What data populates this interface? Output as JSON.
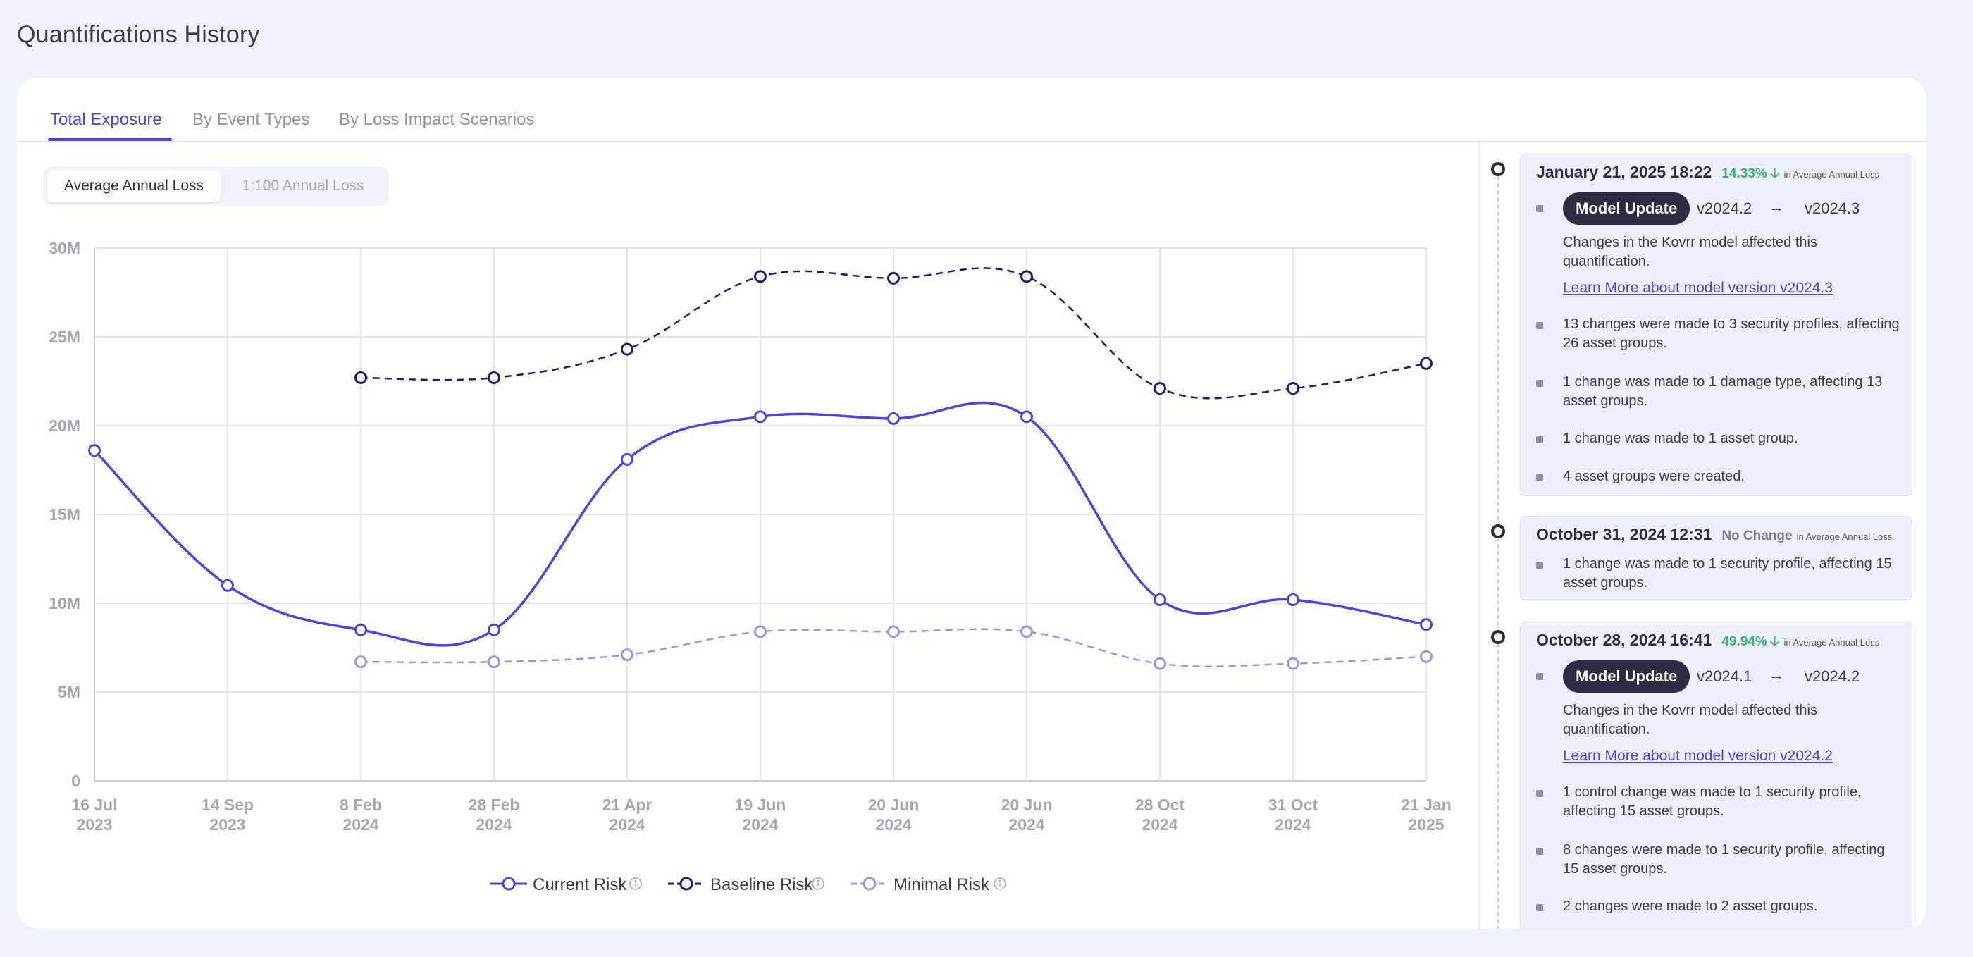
{
  "page": {
    "title": "Quantifications History"
  },
  "tabs": [
    {
      "label": "Total Exposure",
      "active": true
    },
    {
      "label": "By Event Types",
      "active": false
    },
    {
      "label": "By Loss Impact Scenarios",
      "active": false
    }
  ],
  "toggle": {
    "options": [
      "Average Annual Loss",
      "1:100 Annual Loss"
    ],
    "selected": 0
  },
  "colors": {
    "current": "#4b47d8",
    "baseline": "#1c1a7a",
    "minimal": "#8f9be8",
    "positive": "#3cb371",
    "badge": "#2b2d42"
  },
  "chart_data": {
    "type": "line",
    "categories": [
      [
        "16 Jul",
        "2023"
      ],
      [
        "14 Sep",
        "2023"
      ],
      [
        "8 Feb",
        "2024"
      ],
      [
        "28 Feb",
        "2024"
      ],
      [
        "21 Apr",
        "2024"
      ],
      [
        "19 Jun",
        "2024"
      ],
      [
        "20 Jun",
        "2024"
      ],
      [
        "20 Jun",
        "2024"
      ],
      [
        "28 Oct",
        "2024"
      ],
      [
        "31 Oct",
        "2024"
      ],
      [
        "21 Jan",
        "2025"
      ]
    ],
    "ylim": [
      0,
      30000000
    ],
    "yticks": [
      0,
      5000000,
      10000000,
      15000000,
      20000000,
      25000000,
      30000000
    ],
    "ytick_labels": [
      "0",
      "5M",
      "10M",
      "15M",
      "20M",
      "25M",
      "30M"
    ],
    "grid": true,
    "legend": "bottom-center",
    "series": [
      {
        "name": "Current Risk",
        "style": "solid",
        "values": [
          18.6,
          11.0,
          8.5,
          8.5,
          18.1,
          20.5,
          20.4,
          20.5,
          10.2,
          10.2,
          8.8
        ],
        "unit_multiplier": 1000000
      },
      {
        "name": "Baseline Risk",
        "style": "dashed",
        "values": [
          null,
          null,
          22.7,
          22.7,
          24.3,
          28.4,
          28.3,
          28.4,
          22.1,
          22.1,
          23.5
        ],
        "unit_multiplier": 1000000
      },
      {
        "name": "Minimal Risk",
        "style": "dashed",
        "values": [
          null,
          null,
          6.7,
          6.7,
          7.1,
          8.4,
          8.4,
          8.4,
          6.6,
          6.6,
          7.0
        ],
        "unit_multiplier": 1000000
      }
    ]
  },
  "timeline": {
    "in_label": "in Average Annual Loss",
    "entries": [
      {
        "date": "January 21, 2025 18:22",
        "change": "14.33%",
        "arrow": "🡣",
        "badge": "Model Update",
        "from_version": "v2024.2",
        "to_version": "v2024.3",
        "arrow_sym": "→",
        "model_text": "Changes in the Kovrr model affected this quantification.",
        "link": "Learn More about model version v2024.3",
        "items": [
          "13 changes were made to 3 security profiles, affecting 26 asset groups.",
          "1 change was made to 1 damage type, affecting 13 asset groups.",
          "1 change was made to 1 asset group.",
          "4 asset groups were created."
        ]
      },
      {
        "date": "October 31, 2024 12:31",
        "change": "No Change",
        "items": [
          "1 change was made to 1 security profile, affecting 15 asset groups."
        ]
      },
      {
        "date": "October 28, 2024 16:41",
        "change": "49.94%",
        "arrow": "🡣",
        "badge": "Model Update",
        "from_version": "v2024.1",
        "to_version": "v2024.2",
        "arrow_sym": "→",
        "model_text": "Changes in the Kovrr model affected this quantification.",
        "link": "Learn More about model version v2024.2",
        "items": [
          "1 control change was made to 1 security profile, affecting 15 asset groups.",
          "8 changes were made to 1 security profile, affecting 15 asset groups.",
          "2 changes were made to 2 asset groups."
        ]
      }
    ]
  }
}
